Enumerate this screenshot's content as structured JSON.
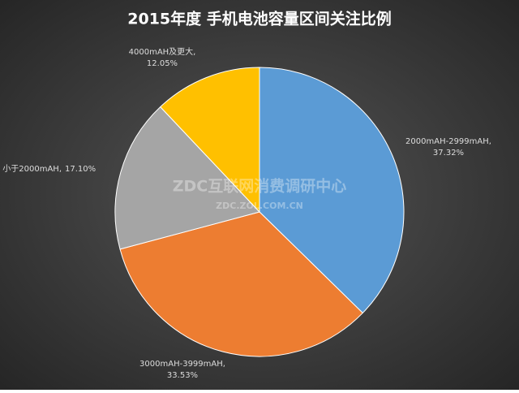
{
  "chart_data": {
    "type": "pie",
    "title": "2015年度 手机电池容量区间关注比例",
    "categories": [
      "2000mAH-2999mAH,",
      "3000mAH-3999mAH,",
      "小于2000mAH,",
      "4000mAH及更大,"
    ],
    "values": [
      37.32,
      33.53,
      17.1,
      12.05
    ],
    "value_labels": [
      "37.32%",
      "33.53%",
      "17.10%",
      "12.05%"
    ],
    "colors": [
      "#5b9bd5",
      "#ed7d31",
      "#a5a5a5",
      "#ffc000"
    ],
    "watermark": [
      "ZDC互联网消费调研中心",
      "ZDC.ZOL.COM.CN"
    ]
  }
}
